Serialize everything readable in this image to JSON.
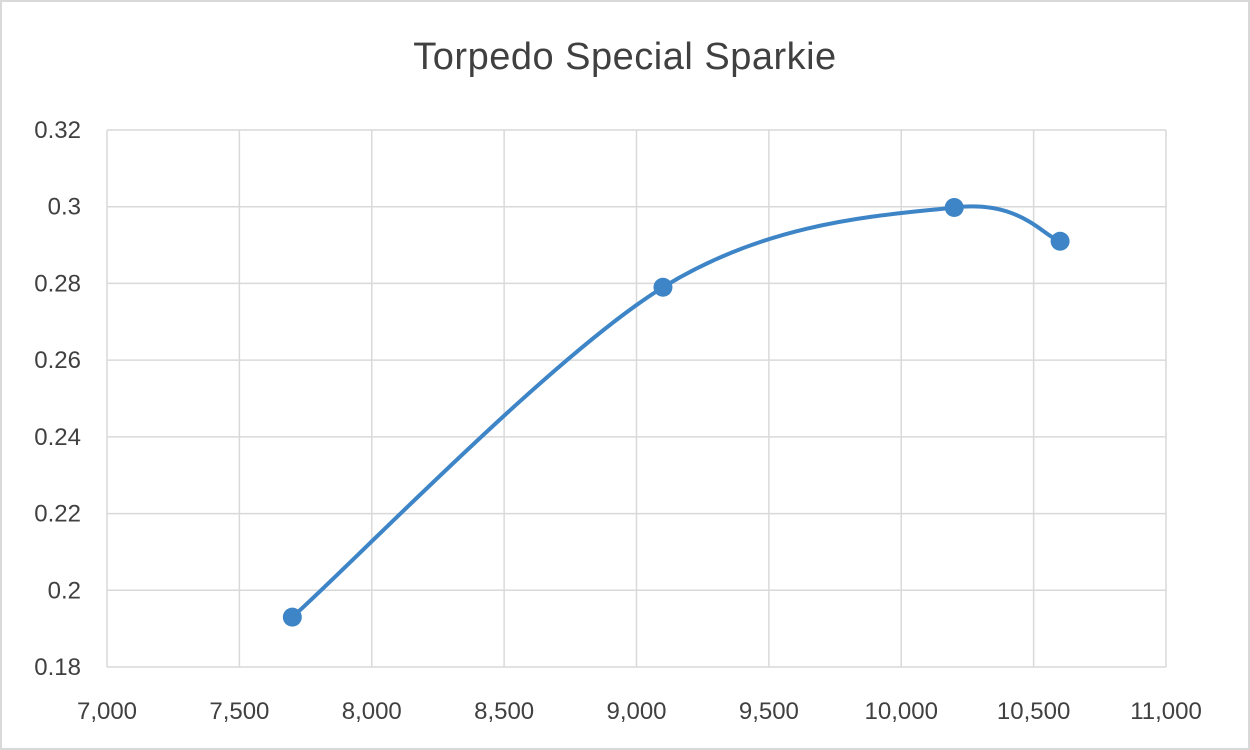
{
  "chart_data": {
    "type": "scatter",
    "title": "Torpedo Special Sparkie",
    "xlabel": "",
    "ylabel": "",
    "xlim": [
      7000,
      11000
    ],
    "ylim": [
      0.18,
      0.32
    ],
    "x_ticks": [
      7000,
      7500,
      8000,
      8500,
      9000,
      9500,
      10000,
      10500,
      11000
    ],
    "x_tick_labels": [
      "7,000",
      "7,500",
      "8,000",
      "8,500",
      "9,000",
      "9,500",
      "10,000",
      "10,500",
      "11,000"
    ],
    "y_ticks": [
      0.18,
      0.2,
      0.22,
      0.24,
      0.26,
      0.28,
      0.3,
      0.32
    ],
    "y_tick_labels": [
      "0.18",
      "0.2",
      "0.22",
      "0.24",
      "0.26",
      "0.28",
      "0.3",
      "0.32"
    ],
    "grid": true,
    "smooth": true,
    "series": [
      {
        "x": [
          7700,
          9100,
          10200,
          10600
        ],
        "y": [
          0.193,
          0.279,
          0.2998,
          0.291
        ],
        "color": "#3d85c6"
      }
    ]
  }
}
